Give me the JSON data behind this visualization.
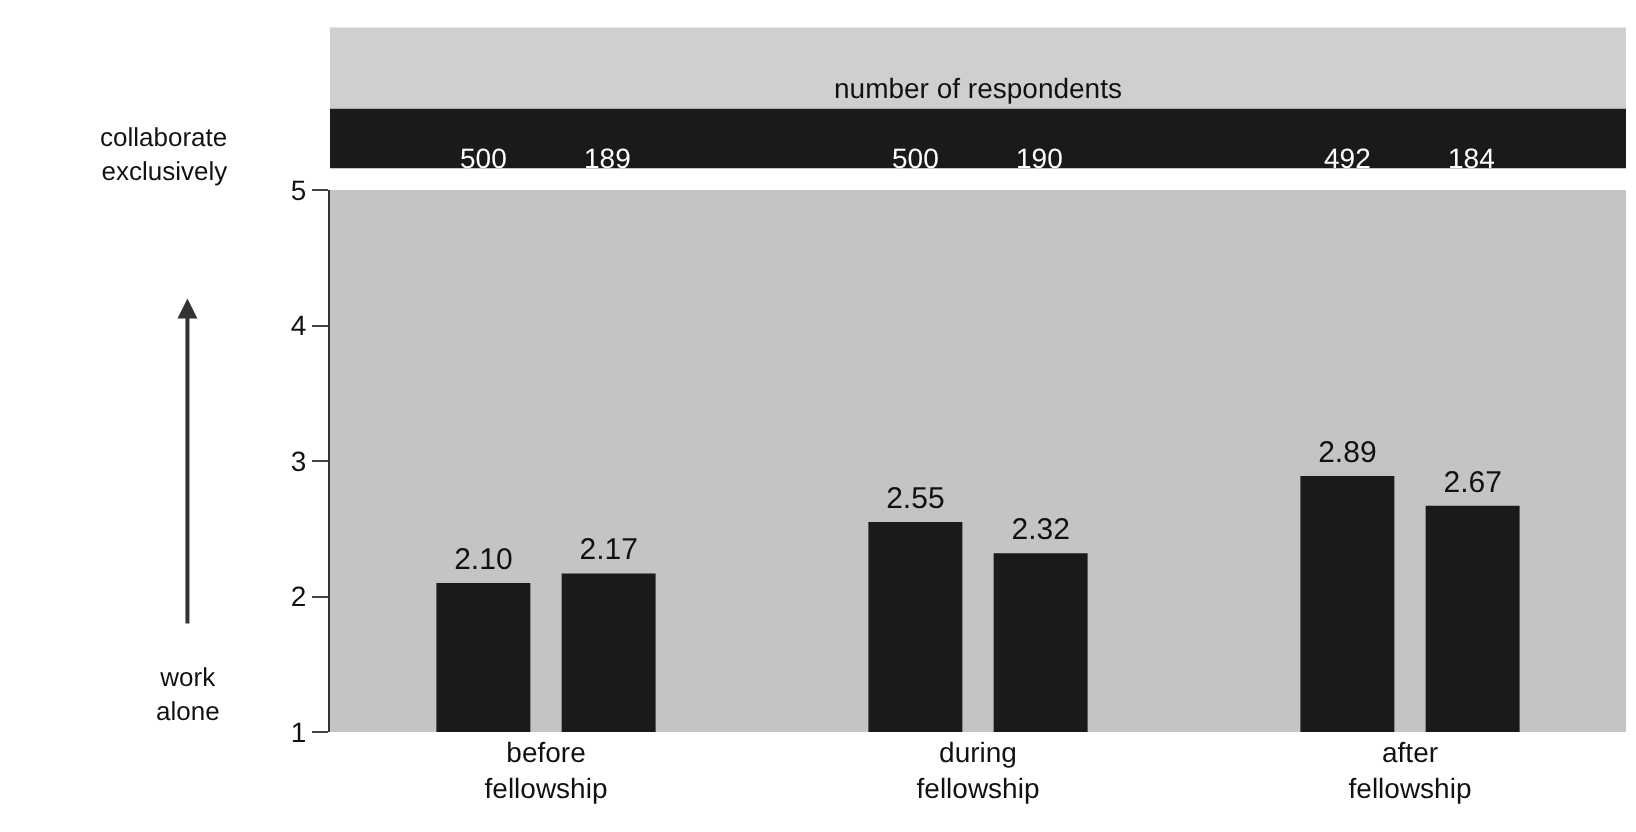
{
  "chart_data": {
    "type": "bar",
    "categories": [
      "before fellowship",
      "during fellowship",
      "after fellowship"
    ],
    "series": [
      {
        "color": "#1a1a1a",
        "values": [
          2.1,
          2.55,
          2.89
        ],
        "value_labels": [
          "2.10",
          "2.55",
          "2.89"
        ]
      },
      {
        "color": "#1a1a1a",
        "values": [
          2.17,
          2.32,
          2.67
        ],
        "value_labels": [
          "2.17",
          "2.32",
          "2.67"
        ]
      }
    ],
    "ylim": [
      1,
      5
    ],
    "yticks": [
      1,
      2,
      3,
      4,
      5
    ],
    "grid": false,
    "data_labels": true,
    "annotations": [
      "number of respondents",
      "500",
      "189",
      "500",
      "190",
      "492",
      "184",
      "collaborate exclusively",
      "work alone"
    ]
  }
}
